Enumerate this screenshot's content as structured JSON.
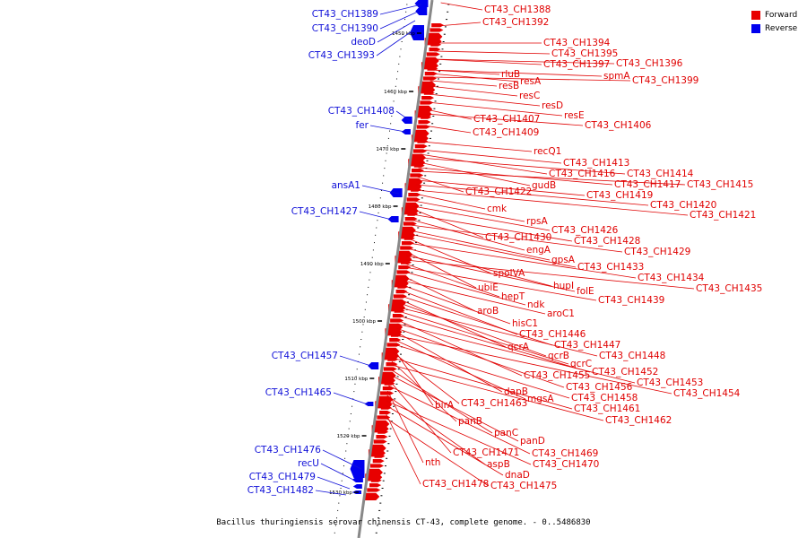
{
  "caption": "Bacillus thuringiensis serovar chinensis CT-43, complete genome. - 0..5486830",
  "legend": [
    {
      "label": "Forward",
      "color": "#e80000"
    },
    {
      "label": "Reverse",
      "color": "#0000ee"
    }
  ],
  "colors": {
    "forward": "#e80000",
    "reverse": "#0000ee",
    "axis": "#888888"
  },
  "ticks": [
    "1450 kbp",
    "1460 kbp",
    "1470 kbp",
    "1480 kbp",
    "1490 kbp",
    "1500 kbp",
    "1510 kbp",
    "1520 kbp",
    "1530 kbp"
  ],
  "forward_labels": [
    "CT43_CH1388",
    "CT43_CH1392",
    "CT43_CH1394",
    "CT43_CH1395",
    "CT43_CH1397",
    "CT43_CH1396",
    "rluB",
    "resA",
    "spmA",
    "CT43_CH1399",
    "resB",
    "resC",
    "resD",
    "resE",
    "CT43_CH1407",
    "CT43_CH1406",
    "CT43_CH1409",
    "recQ1",
    "CT43_CH1413",
    "CT43_CH1416",
    "CT43_CH1414",
    "gudB",
    "CT43_CH1417",
    "CT43_CH1415",
    "CT43_CH1422",
    "CT43_CH1419",
    "CT43_CH1420",
    "cmk",
    "CT43_CH1421",
    "rpsA",
    "CT43_CH1426",
    "CT43_CH1430",
    "CT43_CH1428",
    "engA",
    "CT43_CH1429",
    "gpsA",
    "CT43_CH1433",
    "spoIVA",
    "CT43_CH1434",
    "hupI",
    "ubiE",
    "folE",
    "CT43_CH1435",
    "hepT",
    "CT43_CH1439",
    "ndk",
    "aroB",
    "aroC1",
    "hisC1",
    "CT43_CH1446",
    "CT43_CH1447",
    "qcrA",
    "qcrB",
    "CT43_CH1448",
    "qcrC",
    "CT43_CH1452",
    "CT43_CH1455",
    "CT43_CH1453",
    "CT43_CH1456",
    "dapB",
    "CT43_CH1454",
    "mgsA",
    "CT43_CH1458",
    "birA",
    "CT43_CH1463",
    "CT43_CH1461",
    "panB",
    "CT43_CH1462",
    "panC",
    "panD",
    "CT43_CH1471",
    "CT43_CH1469",
    "nth",
    "aspB",
    "CT43_CH1470",
    "dnaD",
    "CT43_CH1478",
    "CT43_CH1475"
  ],
  "reverse_labels": [
    "CT43_CH1389",
    "CT43_CH1390",
    "deoD",
    "CT43_CH1393",
    "CT43_CH1408",
    "fer",
    "ansA1",
    "CT43_CH1427",
    "CT43_CH1457",
    "CT43_CH1465",
    "CT43_CH1476",
    "recU",
    "CT43_CH1479",
    "CT43_CH1482"
  ]
}
